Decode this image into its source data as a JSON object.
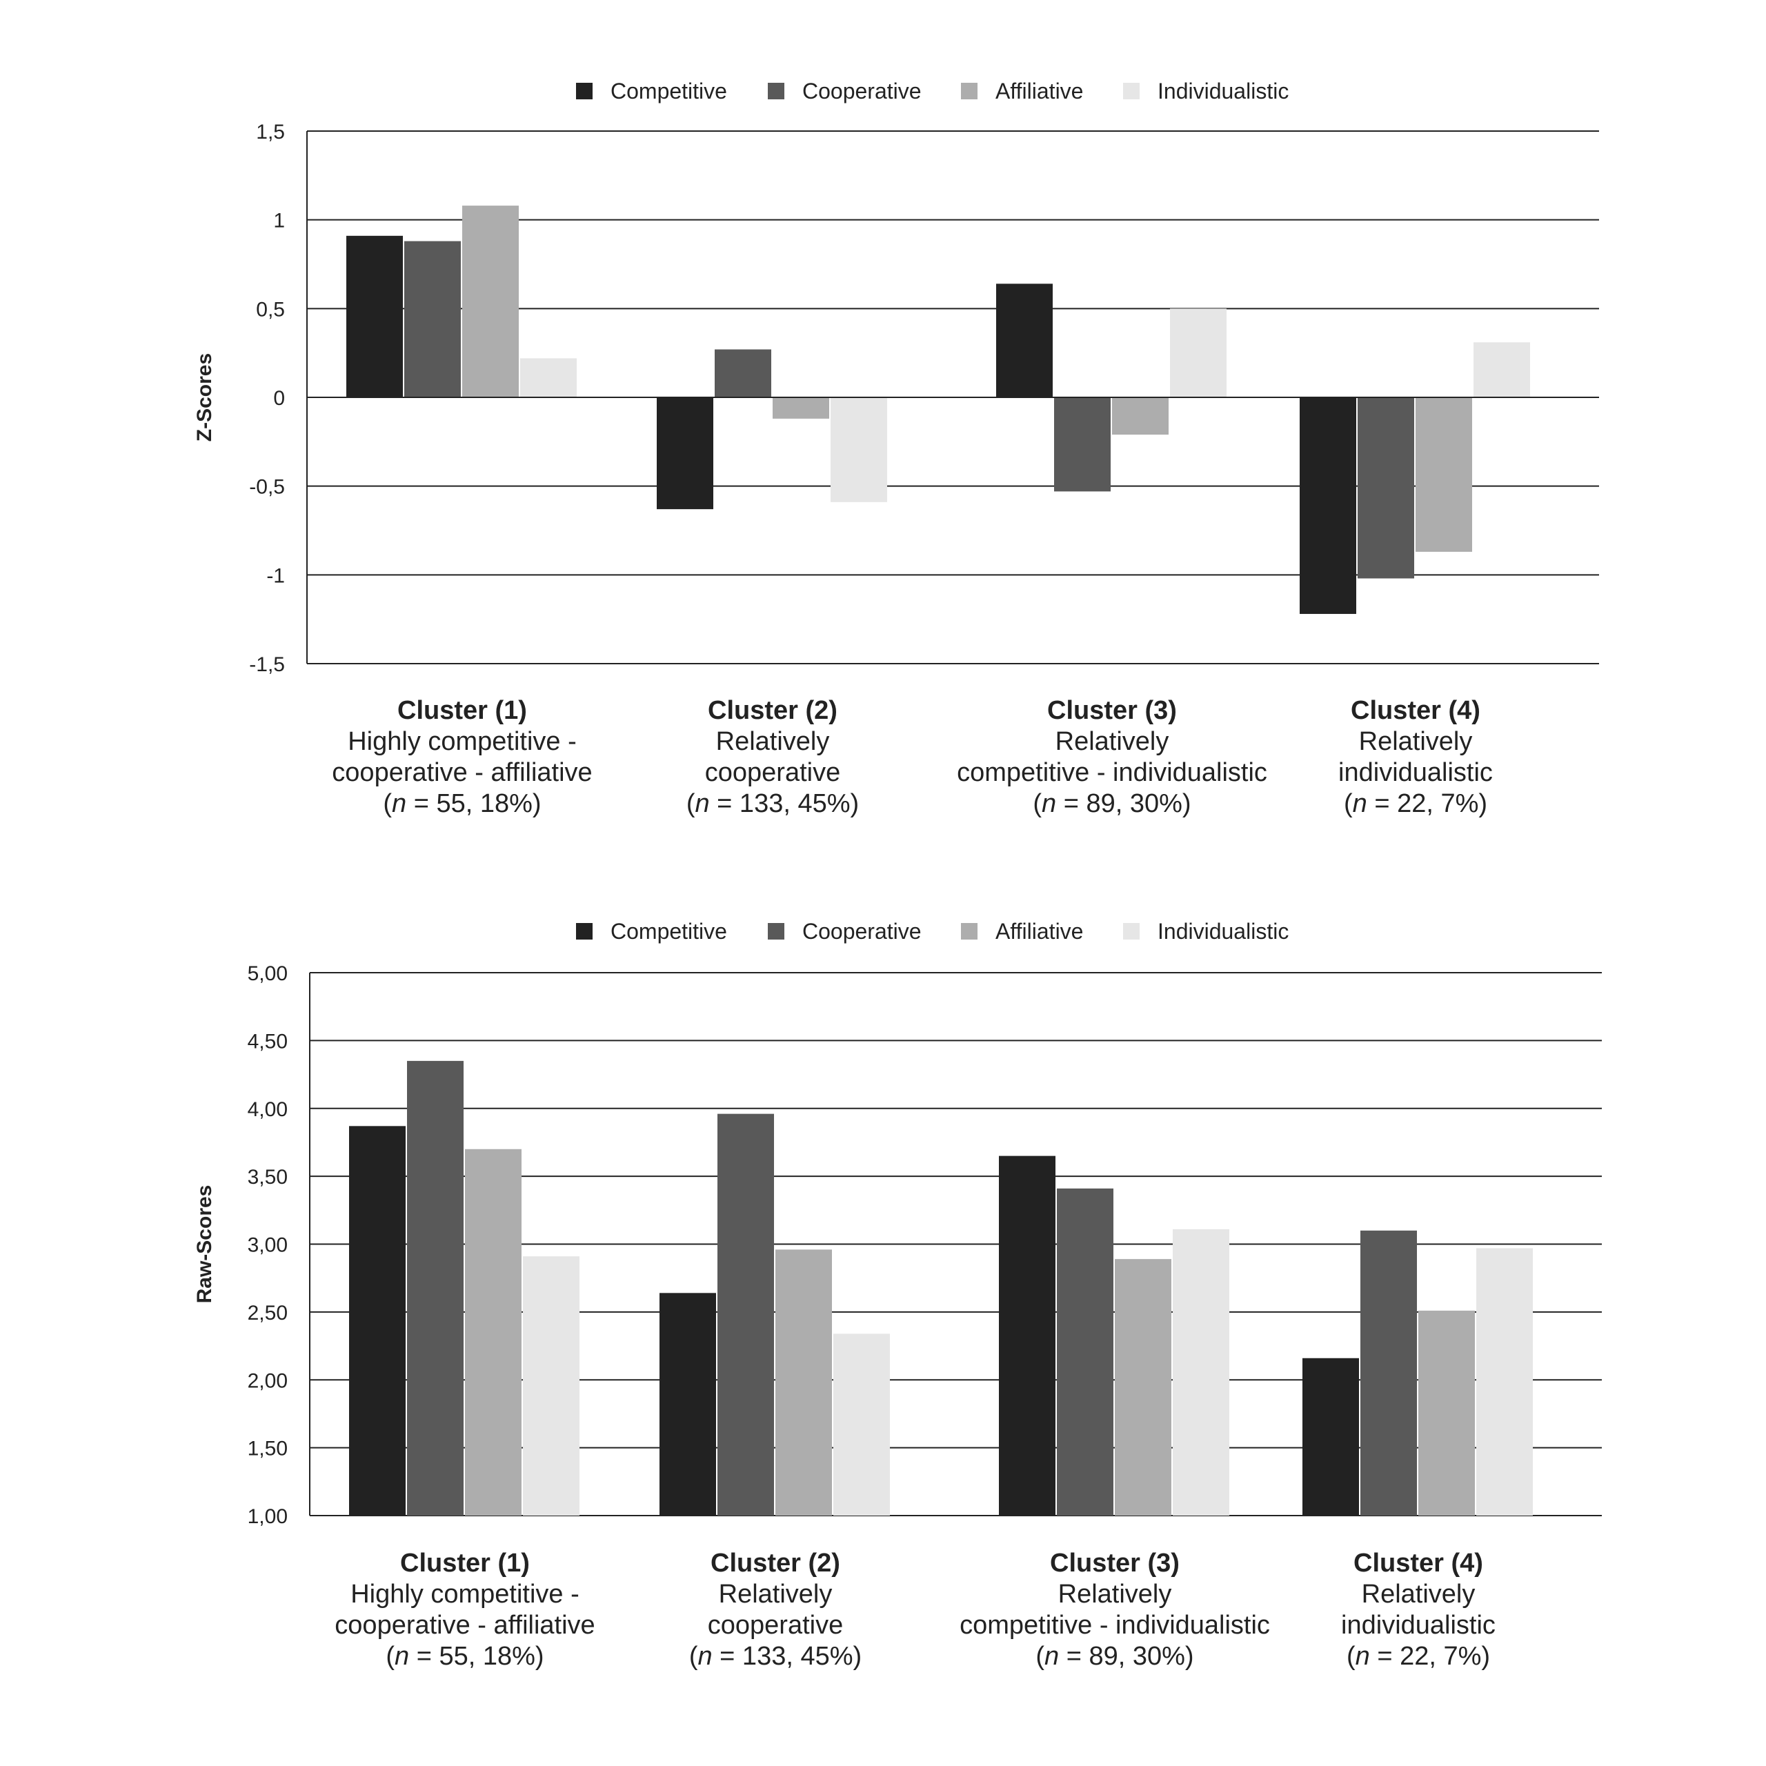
{
  "colors": {
    "Competitive": "#222222",
    "Cooperative": "#595959",
    "Affiliative": "#adadad",
    "Individualistic": "#e6e6e6",
    "grid": "#222222"
  },
  "chart_data": [
    {
      "type": "bar",
      "ylabel": "Z-Scores",
      "ylim": [
        -1.5,
        1.5
      ],
      "yticks": [
        1.5,
        1,
        0.5,
        0,
        -0.5,
        -1,
        -1.5
      ],
      "ytick_labels": [
        "1,5",
        "1",
        "0,5",
        "0",
        "-0,5",
        "-1",
        "-1,5"
      ],
      "grid": true,
      "legend_position": "top-center",
      "legend": [
        "Competitive",
        "Cooperative",
        "Affiliative",
        "Individualistic"
      ],
      "categories": [
        {
          "title": "Cluster (1)",
          "lines": [
            "Highly competitive -",
            "cooperative - affiliative"
          ],
          "n_text": " = 55, 18%)"
        },
        {
          "title": "Cluster (2)",
          "lines": [
            "Relatively",
            "cooperative"
          ],
          "n_text": " = 133, 45%)"
        },
        {
          "title": "Cluster (3)",
          "lines": [
            "Relatively",
            "competitive - individualistic"
          ],
          "n_text": " = 89, 30%)"
        },
        {
          "title": "Cluster (4)",
          "lines": [
            "Relatively",
            "individualistic"
          ],
          "n_text": " = 22, 7%)"
        }
      ],
      "series": [
        {
          "name": "Competitive",
          "values": [
            0.91,
            -0.63,
            0.64,
            -1.22
          ]
        },
        {
          "name": "Cooperative",
          "values": [
            0.88,
            0.27,
            -0.53,
            -1.02
          ]
        },
        {
          "name": "Affiliative",
          "values": [
            1.08,
            -0.12,
            -0.21,
            -0.87
          ]
        },
        {
          "name": "Individualistic",
          "values": [
            0.22,
            -0.59,
            0.5,
            0.31
          ]
        }
      ]
    },
    {
      "type": "bar",
      "ylabel": "Raw-Scores",
      "ylim": [
        1.0,
        5.0
      ],
      "yticks": [
        5.0,
        4.5,
        4.0,
        3.5,
        3.0,
        2.5,
        2.0,
        1.5,
        1.0
      ],
      "ytick_labels": [
        "5,00",
        "4,50",
        "4,00",
        "3,50",
        "3,00",
        "2,50",
        "2,00",
        "1,50",
        "1,00"
      ],
      "grid": true,
      "legend_position": "top-center",
      "legend": [
        "Competitive",
        "Cooperative",
        "Affiliative",
        "Individualistic"
      ],
      "categories": [
        {
          "title": "Cluster (1)",
          "lines": [
            "Highly competitive -",
            "cooperative - affiliative"
          ],
          "n_text": " = 55, 18%)"
        },
        {
          "title": "Cluster (2)",
          "lines": [
            "Relatively",
            "cooperative"
          ],
          "n_text": " = 133, 45%)"
        },
        {
          "title": "Cluster (3)",
          "lines": [
            "Relatively",
            "competitive - individualistic"
          ],
          "n_text": " = 89, 30%)"
        },
        {
          "title": "Cluster (4)",
          "lines": [
            "Relatively",
            "individualistic"
          ],
          "n_text": " = 22, 7%)"
        }
      ],
      "series": [
        {
          "name": "Competitive",
          "values": [
            3.87,
            2.64,
            3.65,
            2.16
          ]
        },
        {
          "name": "Cooperative",
          "values": [
            4.35,
            3.96,
            3.41,
            3.1
          ]
        },
        {
          "name": "Affiliative",
          "values": [
            3.7,
            2.96,
            2.89,
            2.51
          ]
        },
        {
          "name": "Individualistic",
          "values": [
            2.91,
            2.34,
            3.11,
            2.97
          ]
        }
      ]
    }
  ]
}
